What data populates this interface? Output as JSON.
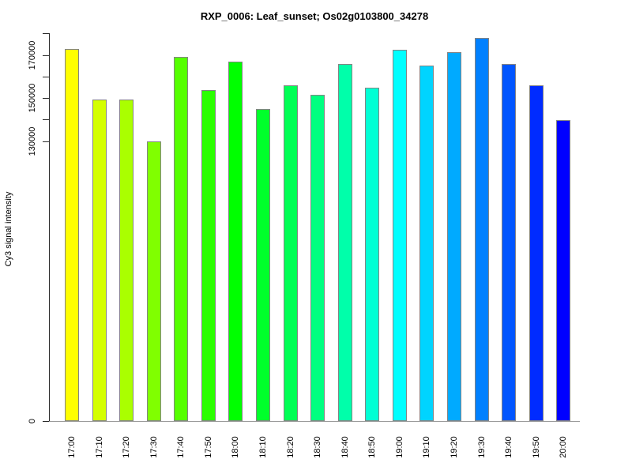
{
  "header": {
    "title": "RXP_0006: Leaf_sunset; Os02g0103800_34278"
  },
  "chart_data": {
    "type": "bar",
    "title": "RXP_0006: Leaf_sunset; Os02g0103800_34278",
    "xlabel": "",
    "ylabel": "Cy3 signal intensity",
    "categories": [
      "17:00",
      "17:10",
      "17:20",
      "17:30",
      "17:40",
      "17:50",
      "18:00",
      "18:10",
      "18:20",
      "18:30",
      "18:40",
      "18:50",
      "19:00",
      "19:10",
      "19:20",
      "19:30",
      "19:40",
      "19:50",
      "20:00"
    ],
    "values": [
      172700,
      149100,
      149400,
      130000,
      169200,
      153500,
      167000,
      145000,
      156000,
      151600,
      165900,
      154600,
      172500,
      165200,
      171400,
      178000,
      165600,
      156000,
      139900
    ],
    "bar_colors": [
      "#FFFF00",
      "#D4FF00",
      "#AAFF00",
      "#80FF00",
      "#55FF00",
      "#2BFF00",
      "#00FF00",
      "#00FF2B",
      "#00FF55",
      "#00FF80",
      "#00FFAA",
      "#00FFD4",
      "#00FFFF",
      "#00D4FF",
      "#00AAFF",
      "#0080FF",
      "#0055FF",
      "#002BFF",
      "#0000FF"
    ],
    "ylim": [
      0,
      183000
    ],
    "y_ticks": [
      0,
      130000,
      140000,
      150000,
      160000,
      170000,
      180000
    ],
    "y_labeled_ticks": [
      0,
      130000,
      150000,
      170000
    ],
    "grid": false,
    "legend": "none",
    "bar_border_color": "#848484",
    "axis_color": "#2b2b2b",
    "baseline_color": "#9c9c9c",
    "background_color": "#ffffff"
  }
}
